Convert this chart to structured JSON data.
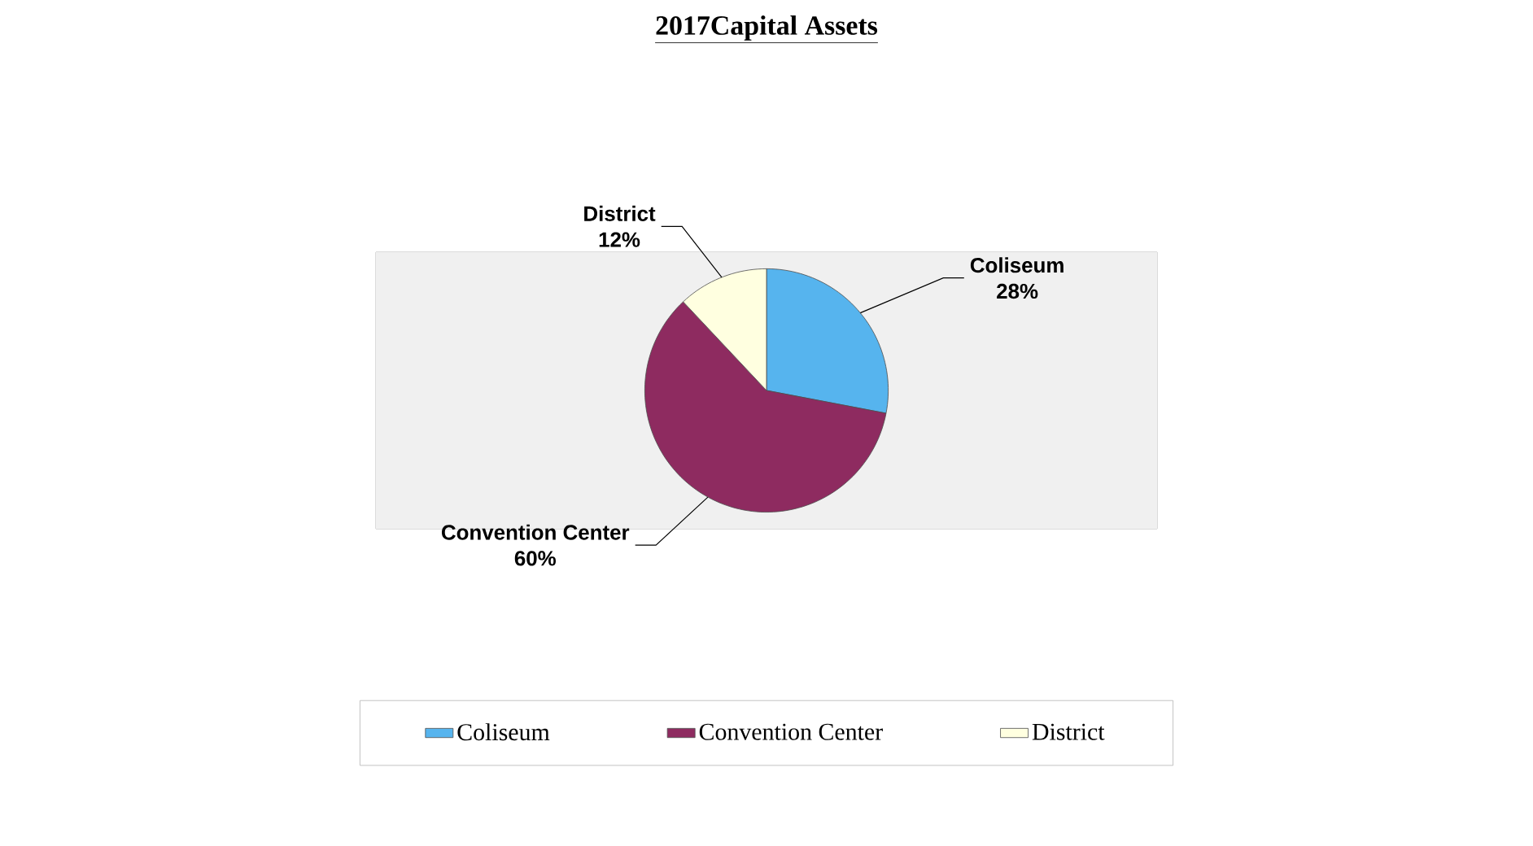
{
  "chart_data": {
    "type": "pie",
    "title": "2017Capital Assets",
    "categories": [
      "Coliseum",
      "Convention Center",
      "District"
    ],
    "values": [
      28,
      60,
      12
    ],
    "value_labels": [
      "28%",
      "60%",
      "12%"
    ],
    "colors": [
      "#56b4ee",
      "#8e2b60",
      "#ffffe0"
    ],
    "legend": "bottom"
  }
}
